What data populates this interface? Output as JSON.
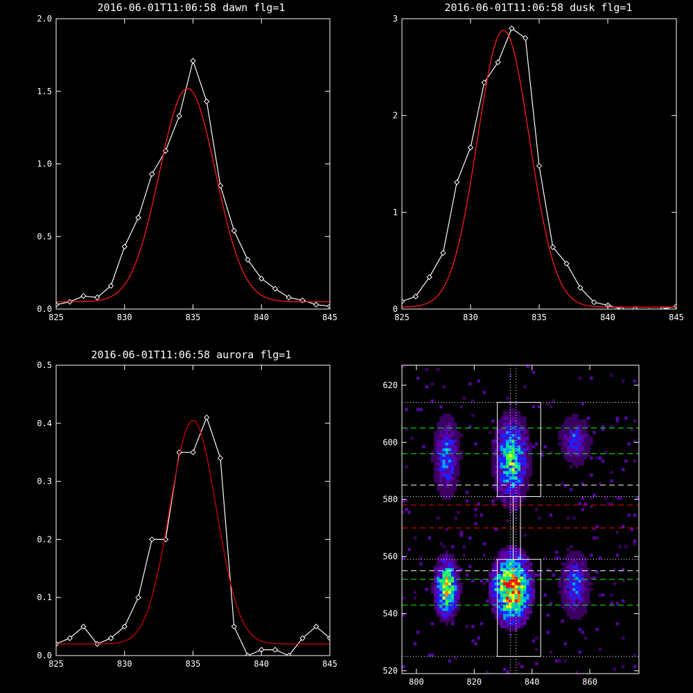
{
  "chart_data": [
    {
      "type": "line",
      "title": "2016-06-01T11:06:58 dawn flg=1",
      "xlabel": "",
      "ylabel": "",
      "xlim": [
        825,
        845
      ],
      "ylim": [
        0,
        2.0
      ],
      "xticks": [
        825,
        830,
        835,
        840,
        845
      ],
      "xtick_labels": [
        "825",
        "830",
        "835",
        "840",
        "845"
      ],
      "yticks": [
        0,
        0.5,
        1.0,
        1.5,
        2.0
      ],
      "ytick_labels": [
        "0.0",
        "0.5",
        "1.0",
        "1.5",
        "2.0"
      ],
      "series": [
        {
          "color": "#ffffff",
          "marker": "diamond",
          "x": [
            825,
            826,
            827,
            828,
            829,
            830,
            831,
            832,
            833,
            834,
            835,
            836,
            837,
            838,
            839,
            840,
            841,
            842,
            843,
            844,
            845
          ],
          "y": [
            0.03,
            0.05,
            0.09,
            0.08,
            0.16,
            0.43,
            0.63,
            0.93,
            1.09,
            1.33,
            1.71,
            1.43,
            0.85,
            0.54,
            0.34,
            0.21,
            0.14,
            0.08,
            0.06,
            0.03,
            0.02
          ]
        },
        {
          "color": "#ff1a1a",
          "model": "gaussian",
          "amplitude": 1.47,
          "center": 834.6,
          "sigma": 2.05,
          "offset": 0.05
        }
      ]
    },
    {
      "type": "line",
      "title": "2016-06-01T11:06:58 dusk flg=1",
      "xlabel": "",
      "ylabel": "",
      "xlim": [
        825,
        845
      ],
      "ylim": [
        0,
        3
      ],
      "xticks": [
        825,
        830,
        835,
        840,
        845
      ],
      "xtick_labels": [
        "825",
        "830",
        "835",
        "840",
        "845"
      ],
      "yticks": [
        0,
        1,
        2,
        3
      ],
      "ytick_labels": [
        "0",
        "1",
        "2",
        "3"
      ],
      "series": [
        {
          "color": "#ffffff",
          "marker": "diamond",
          "x": [
            825,
            826,
            827,
            828,
            829,
            830,
            831,
            832,
            833,
            834,
            835,
            836,
            837,
            838,
            839,
            840,
            841,
            842,
            843,
            844,
            845
          ],
          "y": [
            0.08,
            0.13,
            0.33,
            0.58,
            1.31,
            1.67,
            2.34,
            2.55,
            2.9,
            2.8,
            1.48,
            0.64,
            0.47,
            0.22,
            0.07,
            0.04,
            0.0,
            0.0,
            -0.02,
            0.0,
            0.03
          ]
        },
        {
          "color": "#ff1a1a",
          "model": "gaussian",
          "amplitude": 2.86,
          "center": 832.4,
          "sigma": 1.9,
          "offset": 0.02
        }
      ]
    },
    {
      "type": "line",
      "title": "2016-06-01T11:06:58 aurora flg=1",
      "xlabel": "",
      "ylabel": "",
      "xlim": [
        825,
        845
      ],
      "ylim": [
        0,
        0.5
      ],
      "xticks": [
        825,
        830,
        835,
        840,
        845
      ],
      "xtick_labels": [
        "825",
        "830",
        "835",
        "840",
        "845"
      ],
      "yticks": [
        0,
        0.1,
        0.2,
        0.3,
        0.4,
        0.5
      ],
      "ytick_labels": [
        "0.0",
        "0.1",
        "0.2",
        "0.3",
        "0.4",
        "0.5"
      ],
      "series": [
        {
          "color": "#ffffff",
          "marker": "diamond",
          "x": [
            825,
            826,
            827,
            828,
            829,
            830,
            831,
            832,
            833,
            834,
            835,
            836,
            837,
            838,
            839,
            840,
            841,
            842,
            843,
            844,
            845
          ],
          "y": [
            0.02,
            0.03,
            0.05,
            0.02,
            0.03,
            0.05,
            0.1,
            0.2,
            0.2,
            0.35,
            0.35,
            0.41,
            0.34,
            0.05,
            0.0,
            0.01,
            0.01,
            0.0,
            0.03,
            0.05,
            0.03
          ]
        },
        {
          "color": "#cc0000",
          "model": "gaussian",
          "amplitude": 0.385,
          "center": 835.0,
          "sigma": 1.7,
          "offset": 0.02
        }
      ]
    },
    {
      "type": "heatmap",
      "title": "",
      "xlabel": "",
      "ylabel": "",
      "xlim": [
        795,
        877
      ],
      "ylim": [
        519,
        627
      ],
      "xticks": [
        800,
        820,
        840,
        860
      ],
      "xtick_labels": [
        "800",
        "820",
        "840",
        "860"
      ],
      "yticks": [
        520,
        540,
        560,
        580,
        600,
        620
      ],
      "ytick_labels": [
        "520",
        "540",
        "560",
        "580",
        "600",
        "620"
      ],
      "colormap": [
        "#000000",
        "#3a0060",
        "#5a00a8",
        "#2020ff",
        "#00a0ff",
        "#00e0a0",
        "#40ff40",
        "#ffff00",
        "#ff8000",
        "#ff0000"
      ],
      "bright_bands": [
        {
          "x": [
            808,
            813
          ],
          "y": [
            586,
            604
          ],
          "level": 0.45
        },
        {
          "x": [
            808,
            813
          ],
          "y": [
            542,
            556
          ],
          "level": 0.8
        },
        {
          "x": [
            829,
            837
          ],
          "y": [
            583,
            605
          ],
          "level": 0.65
        },
        {
          "x": [
            828,
            838
          ],
          "y": [
            540,
            558
          ],
          "level": 1.0
        },
        {
          "x": [
            852,
            858
          ],
          "y": [
            596,
            605
          ],
          "level": 0.35
        },
        {
          "x": [
            852,
            858
          ],
          "y": [
            543,
            557
          ],
          "level": 0.4
        }
      ],
      "boxes": [
        {
          "x": [
            828,
            843
          ],
          "y": [
            581,
            614
          ],
          "color": "#ffffff"
        },
        {
          "x": [
            828,
            843
          ],
          "y": [
            525,
            559
          ],
          "color": "#ffffff"
        },
        {
          "x": [
            833.5,
            836
          ],
          "y": [
            559,
            581
          ],
          "color": "#ffffff"
        }
      ],
      "vlines": [
        {
          "x": 832.5,
          "style": "dotted",
          "color": "#ffffff"
        },
        {
          "x": 834.5,
          "style": "dotted",
          "color": "#ffffff"
        }
      ],
      "hlines": [
        {
          "y": 614,
          "style": "dotted",
          "color": "#ffffff"
        },
        {
          "y": 605,
          "style": "dashed",
          "color": "#00ff00"
        },
        {
          "y": 596,
          "style": "dashed",
          "color": "#00ff00"
        },
        {
          "y": 585,
          "style": "dashed",
          "color": "#ffffff"
        },
        {
          "y": 581,
          "style": "dotted",
          "color": "#ffffff"
        },
        {
          "y": 578,
          "style": "dashed",
          "color": "#ff0000"
        },
        {
          "y": 570,
          "style": "dashed",
          "color": "#ff0000"
        },
        {
          "y": 559,
          "style": "dotted",
          "color": "#ffffff"
        },
        {
          "y": 555,
          "style": "dashed",
          "color": "#ffffff"
        },
        {
          "y": 552,
          "style": "dashed",
          "color": "#00ff00"
        },
        {
          "y": 543,
          "style": "dashed",
          "color": "#00ff00"
        },
        {
          "y": 525,
          "style": "dotted",
          "color": "#ffffff"
        }
      ]
    }
  ]
}
